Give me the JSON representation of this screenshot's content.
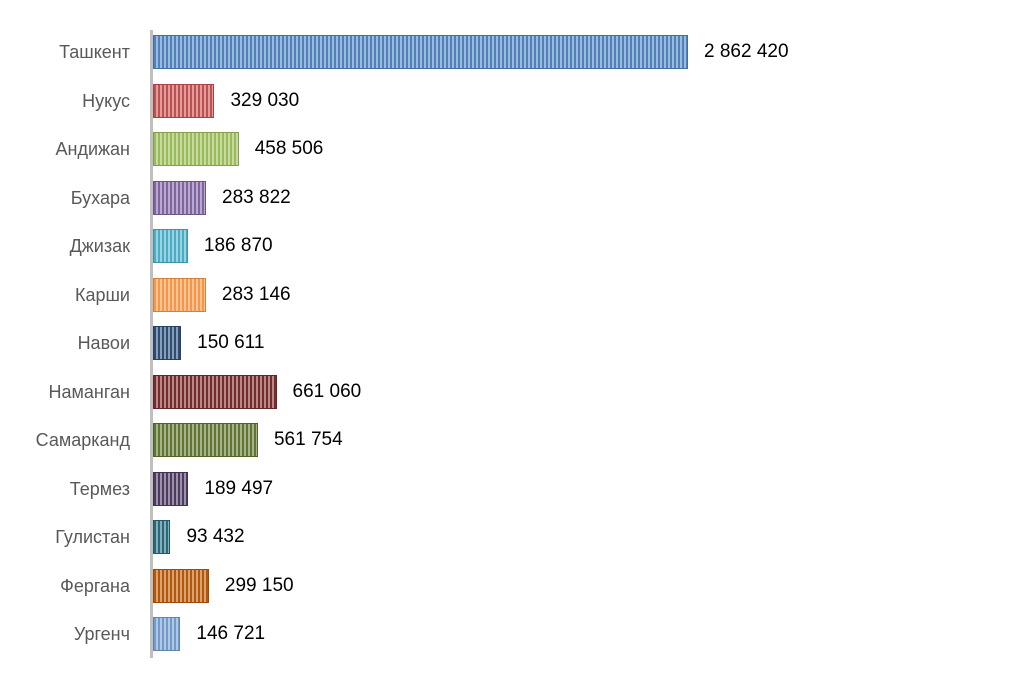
{
  "chart_data": {
    "type": "bar",
    "orientation": "horizontal",
    "title": "",
    "xlabel": "",
    "ylabel": "",
    "grid": false,
    "legend": "none",
    "categories": [
      "Ташкент",
      "Нукус",
      "Андижан",
      "Бухара",
      "Джизак",
      "Карши",
      "Навои",
      "Наманган",
      "Самарканд",
      "Термез",
      "Гулистан",
      "Фергана",
      "Ургенч"
    ],
    "values": [
      2862420,
      329030,
      458506,
      283822,
      186870,
      283146,
      150611,
      661060,
      561754,
      189497,
      93432,
      299150,
      146721
    ],
    "value_labels": [
      "2 862 420",
      "329 030",
      "458 506",
      "283 822",
      "186 870",
      "283 146",
      "150 611",
      "661 060",
      "561 754",
      "189 497",
      "93 432",
      "299 150",
      "146 721"
    ],
    "colors": [
      "#4f81bd",
      "#c0504d",
      "#9bbb59",
      "#8064a2",
      "#4bacc6",
      "#f79646",
      "#2c4d75",
      "#772c2a",
      "#5f7530",
      "#4d3b62",
      "#276a7c",
      "#b65708",
      "#729aca"
    ],
    "xlim": [
      0,
      2862420
    ]
  }
}
